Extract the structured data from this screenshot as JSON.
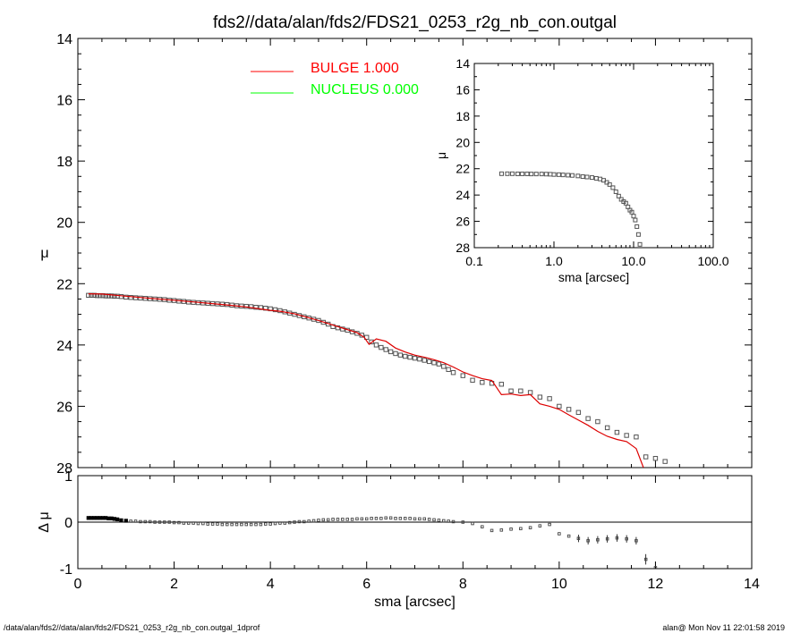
{
  "chart_data": [
    {
      "id": "main",
      "type": "scatter",
      "title": "fds2//data/alan/fds2/FDS21_0253_r2g_nb_con.outgal",
      "xlabel": "",
      "ylabel": "μ",
      "xlim": [
        0,
        14
      ],
      "ylim": [
        28,
        14
      ],
      "y_inverted": true,
      "x_ticks": [
        0,
        2,
        4,
        6,
        8,
        10,
        12,
        14
      ],
      "y_ticks": [
        14,
        16,
        18,
        20,
        22,
        24,
        26,
        28
      ],
      "legend": {
        "placement": "top-center",
        "entries": [
          {
            "label": "BULGE",
            "value": "1.000",
            "color": "#ff0000"
          },
          {
            "label": "NUCLEUS",
            "value": "0.000",
            "color": "#00ff00"
          }
        ]
      },
      "series": [
        {
          "kind": "points",
          "color": "#555555",
          "x": [
            0.22,
            0.28,
            0.34,
            0.4,
            0.46,
            0.52,
            0.58,
            0.64,
            0.7,
            0.76,
            0.82,
            0.9,
            1.0,
            1.1,
            1.2,
            1.3,
            1.4,
            1.5,
            1.6,
            1.7,
            1.8,
            1.9,
            2.0,
            2.1,
            2.2,
            2.3,
            2.4,
            2.5,
            2.6,
            2.7,
            2.8,
            2.9,
            3.0,
            3.1,
            3.2,
            3.3,
            3.4,
            3.5,
            3.6,
            3.7,
            3.8,
            3.9,
            4.0,
            4.1,
            4.2,
            4.3,
            4.4,
            4.5,
            4.6,
            4.7,
            4.8,
            4.9,
            5.0,
            5.1,
            5.2,
            5.3,
            5.4,
            5.5,
            5.6,
            5.7,
            5.8,
            5.9,
            6.0,
            6.1,
            6.2,
            6.3,
            6.4,
            6.5,
            6.6,
            6.7,
            6.8,
            6.9,
            7.0,
            7.1,
            7.2,
            7.3,
            7.4,
            7.5,
            7.6,
            7.7,
            7.8,
            8.0,
            8.2,
            8.4,
            8.6,
            8.8,
            9.0,
            9.2,
            9.4,
            9.6,
            9.8,
            10.0,
            10.2,
            10.4,
            10.6,
            10.8,
            11.0,
            11.2,
            11.4,
            11.6,
            11.8,
            12.0,
            12.2
          ],
          "y": [
            22.38,
            22.38,
            22.38,
            22.39,
            22.39,
            22.39,
            22.4,
            22.4,
            22.4,
            22.41,
            22.41,
            22.42,
            22.44,
            22.45,
            22.46,
            22.47,
            22.48,
            22.49,
            22.5,
            22.51,
            22.52,
            22.54,
            22.55,
            22.57,
            22.58,
            22.6,
            22.61,
            22.62,
            22.63,
            22.64,
            22.65,
            22.66,
            22.67,
            22.68,
            22.7,
            22.72,
            22.73,
            22.74,
            22.75,
            22.77,
            22.78,
            22.8,
            22.82,
            22.85,
            22.88,
            22.92,
            22.96,
            23.0,
            23.04,
            23.08,
            23.12,
            23.16,
            23.2,
            23.26,
            23.32,
            23.4,
            23.44,
            23.48,
            23.52,
            23.57,
            23.62,
            23.68,
            23.75,
            23.9,
            24.0,
            24.08,
            24.15,
            24.22,
            24.28,
            24.33,
            24.37,
            24.4,
            24.43,
            24.46,
            24.5,
            24.54,
            24.58,
            24.62,
            24.7,
            24.8,
            24.9,
            25.0,
            25.15,
            25.22,
            25.25,
            25.28,
            25.5,
            25.5,
            25.55,
            25.7,
            25.75,
            26.0,
            26.1,
            26.2,
            26.4,
            26.5,
            26.7,
            26.85,
            26.95,
            27.0,
            27.65,
            27.7,
            27.8
          ]
        },
        {
          "kind": "line",
          "name": "BULGE",
          "color": "#dd0000",
          "x": [
            0.22,
            0.5,
            1.0,
            1.5,
            2.0,
            2.5,
            3.0,
            3.5,
            4.0,
            4.2,
            4.5,
            5.0,
            5.5,
            5.8,
            5.95,
            6.05,
            6.2,
            6.4,
            6.6,
            6.8,
            7.0,
            7.2,
            7.4,
            7.6,
            7.8,
            8.0,
            8.2,
            8.4,
            8.6,
            8.8,
            9.0,
            9.2,
            9.4,
            9.6,
            9.8,
            10.0,
            10.2,
            10.4,
            10.6,
            10.8,
            11.0,
            11.2,
            11.4,
            11.6,
            11.75
          ],
          "y": [
            22.33,
            22.34,
            22.41,
            22.48,
            22.54,
            22.61,
            22.68,
            22.76,
            22.87,
            22.9,
            22.98,
            23.2,
            23.45,
            23.6,
            23.75,
            23.98,
            23.8,
            23.88,
            24.1,
            24.23,
            24.33,
            24.4,
            24.48,
            24.58,
            24.72,
            24.88,
            25.0,
            25.1,
            25.16,
            25.62,
            25.6,
            25.65,
            25.62,
            25.92,
            26.0,
            26.1,
            26.28,
            26.45,
            26.62,
            26.82,
            26.98,
            27.08,
            27.15,
            27.38,
            28.0
          ]
        }
      ]
    },
    {
      "id": "inset",
      "type": "scatter",
      "title": "",
      "xlabel": "sma [arcsec]",
      "ylabel": "μ",
      "x_scale": "log",
      "xlim": [
        0.1,
        100.0
      ],
      "ylim": [
        28,
        14
      ],
      "y_inverted": true,
      "x_tick_labels": [
        "0.1",
        "1.0",
        "10.0",
        "100.0"
      ],
      "x_tick_values": [
        0.1,
        1.0,
        10.0,
        100.0
      ],
      "y_ticks": [
        14,
        16,
        18,
        20,
        22,
        24,
        26,
        28
      ],
      "series": [
        {
          "kind": "points",
          "color": "#555555",
          "x": [
            0.22,
            0.26,
            0.3,
            0.35,
            0.4,
            0.46,
            0.52,
            0.6,
            0.7,
            0.8,
            0.9,
            1.0,
            1.15,
            1.3,
            1.5,
            1.7,
            2.0,
            2.3,
            2.6,
            3.0,
            3.4,
            3.8,
            4.2,
            4.6,
            5.0,
            5.5,
            6.0,
            6.5,
            7.0,
            7.5,
            8.0,
            8.5,
            9.0,
            9.5,
            10.0,
            10.5,
            11.0,
            11.5,
            12.0
          ],
          "y": [
            22.38,
            22.38,
            22.38,
            22.39,
            22.39,
            22.39,
            22.4,
            22.4,
            22.4,
            22.41,
            22.42,
            22.44,
            22.45,
            22.47,
            22.49,
            22.51,
            22.55,
            22.6,
            22.63,
            22.67,
            22.73,
            22.78,
            22.88,
            23.04,
            23.2,
            23.44,
            23.75,
            24.08,
            24.33,
            24.5,
            24.62,
            24.9,
            25.15,
            25.3,
            25.6,
            25.9,
            26.4,
            27.0,
            27.75
          ]
        }
      ]
    },
    {
      "id": "residual",
      "type": "scatter",
      "title": "",
      "xlabel": "sma [arcsec]",
      "ylabel": "Δ μ",
      "xlim": [
        0,
        14
      ],
      "ylim": [
        -1,
        1
      ],
      "x_ticks": [
        0,
        2,
        4,
        6,
        8,
        10,
        12,
        14
      ],
      "y_ticks": [
        -1,
        0,
        1
      ],
      "series": [
        {
          "kind": "points",
          "color": "#000000",
          "x": [
            0.22,
            0.28,
            0.34,
            0.4,
            0.46,
            0.52,
            0.58,
            0.64,
            0.7,
            0.76,
            0.82,
            0.9,
            1.0,
            1.1,
            1.2,
            1.3,
            1.4,
            1.5,
            1.6,
            1.7,
            1.8,
            1.9,
            2.0,
            2.1,
            2.2,
            2.3,
            2.4,
            2.5,
            2.6,
            2.7,
            2.8,
            2.9,
            3.0,
            3.1,
            3.2,
            3.3,
            3.4,
            3.5,
            3.6,
            3.7,
            3.8,
            3.9,
            4.0,
            4.1,
            4.2,
            4.3,
            4.4,
            4.5,
            4.6,
            4.7,
            4.8,
            4.9,
            5.0,
            5.1,
            5.2,
            5.3,
            5.4,
            5.5,
            5.6,
            5.7,
            5.8,
            5.9,
            6.0,
            6.1,
            6.2,
            6.3,
            6.4,
            6.5,
            6.6,
            6.7,
            6.8,
            6.9,
            7.0,
            7.1,
            7.2,
            7.3,
            7.4,
            7.5,
            7.6,
            7.7,
            7.8,
            8.0,
            8.2,
            8.4,
            8.6,
            8.8,
            9.0,
            9.2,
            9.4,
            9.6,
            9.8,
            10.0,
            10.2,
            10.4,
            10.6,
            10.8,
            11.0,
            11.2,
            11.4,
            11.6,
            11.8,
            12.0
          ],
          "y": [
            0.09,
            0.09,
            0.09,
            0.09,
            0.09,
            0.09,
            0.09,
            0.08,
            0.08,
            0.07,
            0.06,
            0.04,
            0.03,
            0.02,
            0.02,
            0.01,
            0.01,
            0.01,
            0.0,
            0.0,
            0.0,
            0.0,
            -0.01,
            -0.01,
            -0.02,
            -0.02,
            -0.02,
            -0.03,
            -0.03,
            -0.04,
            -0.04,
            -0.04,
            -0.05,
            -0.05,
            -0.05,
            -0.05,
            -0.05,
            -0.05,
            -0.05,
            -0.05,
            -0.05,
            -0.04,
            -0.04,
            -0.03,
            -0.02,
            -0.02,
            -0.01,
            0.0,
            0.01,
            0.01,
            0.02,
            0.03,
            0.04,
            0.05,
            0.05,
            0.06,
            0.06,
            0.06,
            0.06,
            0.06,
            0.07,
            0.07,
            0.07,
            0.08,
            0.08,
            0.08,
            0.09,
            0.09,
            0.08,
            0.08,
            0.08,
            0.08,
            0.07,
            0.07,
            0.07,
            0.06,
            0.05,
            0.04,
            0.03,
            0.02,
            0.01,
            0.0,
            -0.03,
            -0.1,
            -0.18,
            -0.17,
            -0.15,
            -0.14,
            -0.12,
            -0.08,
            -0.05,
            -0.25,
            -0.3,
            -0.35,
            -0.4,
            -0.38,
            -0.36,
            -0.34,
            -0.36,
            -0.4,
            -0.8,
            -0.98
          ],
          "error_bars": {
            "x_from": 10.4,
            "approx_err": 0.08
          }
        }
      ]
    }
  ],
  "footer": {
    "left": "/data/alan/fds2//data/alan/fds2/FDS21_0253_r2g_nb_con.outgal_1dprof",
    "right": "alan@  Mon Nov 11 22:01:58 2019"
  }
}
